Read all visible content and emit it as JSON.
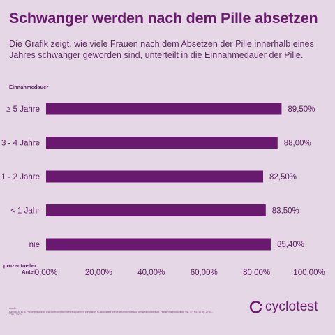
{
  "header": {
    "title": "Schwanger werden nach dem Pille absetzen",
    "subtitle": "Die Grafik zeigt, wie viele Frauen nach dem Absetzen der Pille innerhalb eines Jahres schwanger geworden sind, unterteilt in die Einnahmedauer der Pille."
  },
  "chart_data": {
    "type": "bar",
    "orientation": "horizontal",
    "ylabel": "Einnahmedauer",
    "xlabel": "prozentueller Anteil",
    "categories": [
      "≥ 5 Jahre",
      "3 - 4 Jahre",
      "1 - 2 Jahre",
      "< 1 Jahr",
      "nie"
    ],
    "values": [
      89.5,
      88.0,
      82.5,
      83.5,
      85.4
    ],
    "value_labels": [
      "89,50%",
      "88,00%",
      "82,50%",
      "83,50%",
      "85,40%"
    ],
    "xlim": [
      0,
      100
    ],
    "xticks": [
      "0,00%",
      "20,00%",
      "40,00%",
      "60,00%",
      "80,00%",
      "100,00%"
    ],
    "bar_color": "#6a1a6e",
    "grid": false
  },
  "source": {
    "label": "Quelle:",
    "text": "Farrow, A. et al. Prolonged use of oral contraception before a planned pregnancy is associated with a decreased risk of delayed conception. Human Reproduction, Vol. 17, No. 10 pp. 2754–2761, 2002."
  },
  "brand": {
    "name": "cyclotest",
    "icon": "cyclotest-logo-icon"
  },
  "colors": {
    "background": "#e6d7e6",
    "accent": "#6a1a6e"
  }
}
